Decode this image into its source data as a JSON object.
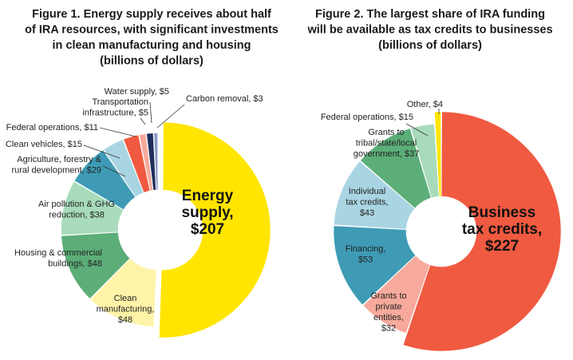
{
  "chart_data": [
    {
      "type": "pie",
      "title_lines": [
        "Figure 1. Energy supply receives about half",
        "of IRA resources, with significant investments",
        "in clean manufacturing and housing",
        "(billions of dollars)"
      ],
      "slices": [
        {
          "name": "Energy supply",
          "value": 207,
          "color": "#ffe500",
          "label_lines": [
            "Energy",
            "supply,",
            "$207"
          ]
        },
        {
          "name": "Clean manufacturing",
          "value": 48,
          "color": "#fff3a8",
          "label_lines": [
            "Clean",
            "manufacturing,",
            "$48"
          ]
        },
        {
          "name": "Housing & commercial buildings",
          "value": 48,
          "color": "#5cae78",
          "label_lines": [
            "Housing & commercial",
            "buildings, $48"
          ]
        },
        {
          "name": "Air pollution & GHG reduction",
          "value": 38,
          "color": "#a8dbbb",
          "label_lines": [
            "Air pollution & GHG",
            "reduction, $38"
          ]
        },
        {
          "name": "Agriculture, forestry & rural development",
          "value": 29,
          "color": "#3f9bb5",
          "label_lines": [
            "Agriculture, forestry &",
            "rural development, $29"
          ]
        },
        {
          "name": "Clean vehicles",
          "value": 15,
          "color": "#a9d5e3",
          "label_lines": [
            "Clean vehicles, $15"
          ]
        },
        {
          "name": "Federal operations",
          "value": 11,
          "color": "#f05a40",
          "label_lines": [
            "Federal operations, $11"
          ]
        },
        {
          "name": "Transportation infrastructure",
          "value": 5,
          "color": "#f7aa9c",
          "label_lines": [
            "Transportation",
            "infrastructure, $5"
          ]
        },
        {
          "name": "Water supply",
          "value": 5,
          "color": "#1f2d5c",
          "label_lines": [
            "Water supply, $5"
          ]
        },
        {
          "name": "Carbon removal",
          "value": 3,
          "color": "#8898c4",
          "label_lines": [
            "Carbon removal, $3"
          ]
        }
      ]
    },
    {
      "type": "pie",
      "title_lines": [
        "Figure 2. The largest share of IRA funding",
        "will be available as tax credits to businesses",
        "(billions of dollars)"
      ],
      "slices": [
        {
          "name": "Business tax credits",
          "value": 227,
          "color": "#f05a40",
          "label_lines": [
            "Business",
            "tax credits,",
            "$227"
          ]
        },
        {
          "name": "Grants to private entities",
          "value": 32,
          "color": "#f7aa9c",
          "label_lines": [
            "Grants to",
            "private",
            "entities,",
            "$32"
          ]
        },
        {
          "name": "Financing",
          "value": 53,
          "color": "#3f9bb5",
          "label_lines": [
            "Financing,",
            "$53"
          ]
        },
        {
          "name": "Individual tax credits",
          "value": 43,
          "color": "#a9d5e3",
          "label_lines": [
            "Individual",
            "tax credits,",
            "$43"
          ]
        },
        {
          "name": "Grants to tribal/state/local government",
          "value": 37,
          "color": "#5cae78",
          "label_lines": [
            "Grants to",
            "tribal/state/local",
            "government, $37"
          ]
        },
        {
          "name": "Federal operations",
          "value": 15,
          "color": "#a8dbbb",
          "label_lines": [
            "Federal operations, $15"
          ]
        },
        {
          "name": "Other",
          "value": 4,
          "color": "#ffe500",
          "label_lines": [
            "Other, $4"
          ]
        }
      ]
    }
  ]
}
